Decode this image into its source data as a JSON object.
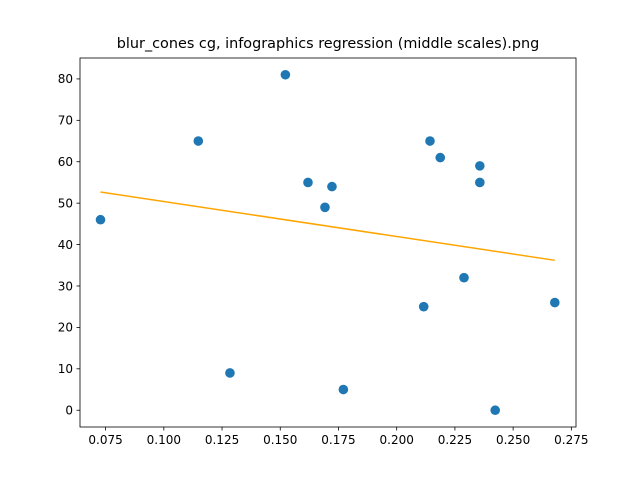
{
  "chart_data": {
    "type": "scatter",
    "title": "blur_cones cg, infographics regression (middle scales).png",
    "xlabel": "",
    "ylabel": "",
    "xlim": [
      0.064,
      0.277
    ],
    "ylim": [
      -4.05,
      85.05
    ],
    "x_ticks": [
      0.075,
      0.1,
      0.125,
      0.15,
      0.175,
      0.2,
      0.225,
      0.25,
      0.275
    ],
    "x_tick_labels": [
      "0.075",
      "0.100",
      "0.125",
      "0.150",
      "0.175",
      "0.200",
      "0.225",
      "0.250",
      "0.275"
    ],
    "y_ticks": [
      0,
      10,
      20,
      30,
      40,
      50,
      60,
      70,
      80
    ],
    "y_tick_labels": [
      "0",
      "10",
      "20",
      "30",
      "40",
      "50",
      "60",
      "70",
      "80"
    ],
    "grid": false,
    "legend": "none",
    "colors": {
      "points": "#1f77b4",
      "regression": "#ffa500"
    },
    "series": [
      {
        "kind": "points",
        "x": [
          0.0728,
          0.1148,
          0.1284,
          0.1522,
          0.1619,
          0.1692,
          0.1722,
          0.1771,
          0.2116,
          0.2143,
          0.2187,
          0.2289,
          0.2357,
          0.2357,
          0.2423,
          0.2679
        ],
        "y": [
          46,
          65,
          9,
          81,
          55,
          49,
          54,
          5,
          25,
          65,
          61,
          32,
          59,
          55,
          0,
          26
        ]
      },
      {
        "kind": "regression",
        "x": [
          0.0728,
          0.2679
        ],
        "y": [
          52.7,
          36.2
        ]
      }
    ]
  }
}
